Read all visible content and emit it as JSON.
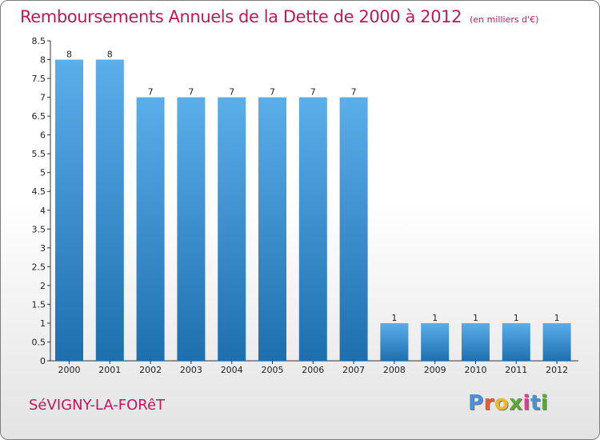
{
  "header": {
    "title": "Remboursements Annuels de la Dette de 2000 à 2012",
    "unit": "(en milliers d'€)"
  },
  "footer": {
    "city": "SéVIGNY-LA-FORêT",
    "brand_letters": [
      "P",
      "r",
      "o",
      "x",
      "i",
      "t",
      "i"
    ],
    "brand_colors": [
      "#4a90d9",
      "#e65c2e",
      "#e8b92a",
      "#5aa83a",
      "#d93f8e",
      "#4a90d9",
      "#5aa83a"
    ]
  },
  "colors": {
    "bar_light": "#5aaeea",
    "bar_dark": "#1e6fae",
    "title": "#c2185b"
  },
  "chart_data": {
    "type": "bar",
    "categories": [
      "2000",
      "2001",
      "2002",
      "2003",
      "2004",
      "2005",
      "2006",
      "2007",
      "2008",
      "2009",
      "2010",
      "2011",
      "2012"
    ],
    "values": [
      8,
      8,
      7,
      7,
      7,
      7,
      7,
      7,
      1,
      1,
      1,
      1,
      1
    ],
    "data_labels": [
      "8",
      "8",
      "7",
      "7",
      "7",
      "7",
      "7",
      "7",
      "1",
      "1",
      "1",
      "1",
      "1"
    ],
    "yticks": [
      "0",
      "0.5",
      "1",
      "1.5",
      "2",
      "2.5",
      "3",
      "3.5",
      "4",
      "4.5",
      "5",
      "5.5",
      "6",
      "6.5",
      "7",
      "7.5",
      "8",
      "8.5"
    ],
    "ylim": [
      0,
      8.5
    ],
    "grid": false
  }
}
